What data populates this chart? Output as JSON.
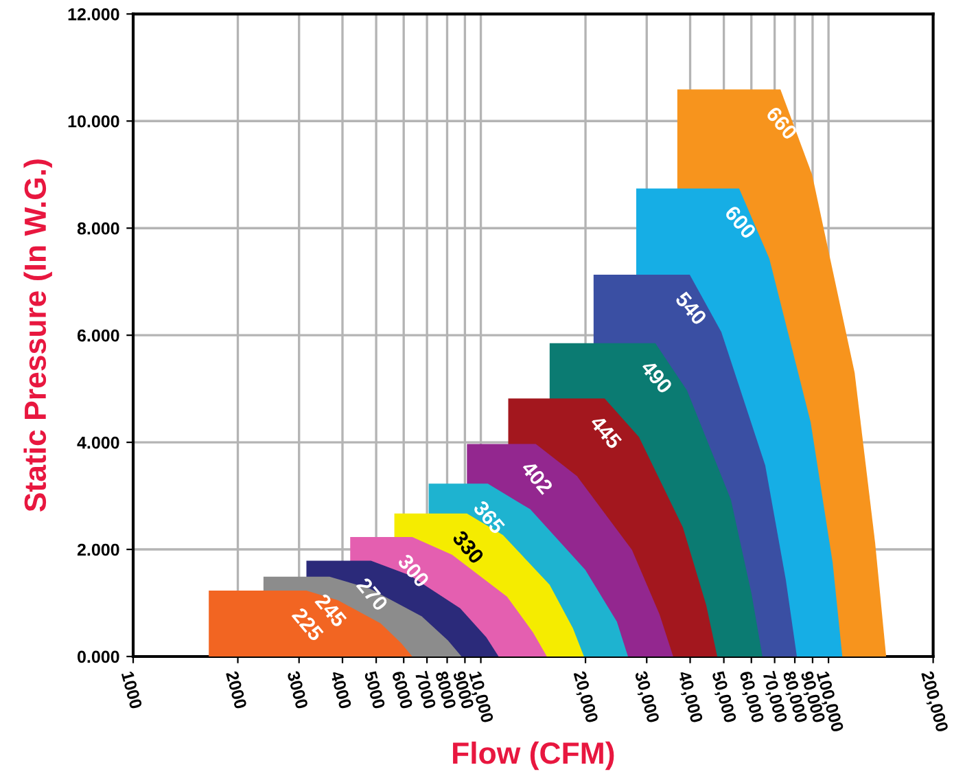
{
  "chart_data": {
    "type": "area",
    "xlabel": "Flow (CFM)",
    "ylabel": "Static Pressure (In W.G.)",
    "log": "x",
    "grid": true,
    "xlim": [
      1000,
      200000
    ],
    "ylim": [
      0,
      12
    ],
    "xticks": [
      1000,
      2000,
      3000,
      4000,
      5000,
      6000,
      7000,
      8000,
      9000,
      {
        "value": 10000,
        "label": "10,000"
      },
      {
        "value": 20000,
        "label": "20,000"
      },
      {
        "value": 30000,
        "label": "30,000"
      },
      {
        "value": 40000,
        "label": "40,000"
      },
      {
        "value": 50000,
        "label": "50,000"
      },
      {
        "value": 60000,
        "label": "60,000"
      },
      {
        "value": 70000,
        "label": "70,000"
      },
      {
        "value": 80000,
        "label": "80,000"
      },
      {
        "value": 90000,
        "label": "90,000"
      },
      {
        "value": 100000,
        "label": "100,000"
      },
      {
        "value": 200000,
        "label": "200,000"
      }
    ],
    "yticks": [
      {
        "value": 0,
        "label": "0.000"
      },
      {
        "value": 2,
        "label": "2.000"
      },
      {
        "value": 4,
        "label": "4.000"
      },
      {
        "value": 6,
        "label": "6.000"
      },
      {
        "value": 8,
        "label": "8.000"
      },
      {
        "value": 10,
        "label": "10.000"
      },
      {
        "value": 12,
        "label": "12.000"
      }
    ],
    "series": [
      {
        "name": "225",
        "color": "#f26522",
        "x": [
          1650,
          2230,
          2800,
          3150,
          3880,
          5150,
          5900,
          6350
        ],
        "values": [
          1.23,
          1.23,
          1.23,
          1.23,
          1.05,
          0.62,
          0.25,
          0
        ]
      },
      {
        "name": "245",
        "color": "#8c8c8c",
        "x": [
          2370,
          2720,
          3510,
          3670,
          4790,
          6760,
          8040,
          8800
        ],
        "values": [
          1.49,
          1.49,
          1.49,
          1.49,
          1.27,
          0.75,
          0.3,
          0
        ]
      },
      {
        "name": "270",
        "color": "#2b2a7a",
        "x": [
          3150,
          3670,
          4610,
          4830,
          6230,
          8720,
          10370,
          11250
        ],
        "values": [
          1.79,
          1.79,
          1.79,
          1.79,
          1.52,
          0.9,
          0.36,
          0
        ]
      },
      {
        "name": "300",
        "color": "#e45fb0",
        "x": [
          4210,
          4920,
          6060,
          6350,
          8260,
          11890,
          14130,
          15490
        ],
        "values": [
          2.23,
          2.23,
          2.23,
          2.23,
          1.9,
          1.12,
          0.45,
          0
        ]
      },
      {
        "name": "330",
        "color": "#f5ec00",
        "x": [
          5640,
          6640,
          8720,
          9120,
          11570,
          15770,
          18400,
          19800
        ],
        "values": [
          2.67,
          2.67,
          2.67,
          2.67,
          2.27,
          1.34,
          0.53,
          0
        ]
      },
      {
        "name": "365",
        "color": "#1eb3d0",
        "x": [
          7080,
          8340,
          10000,
          10470,
          13870,
          19970,
          24620,
          26500
        ],
        "values": [
          3.23,
          3.23,
          3.23,
          3.23,
          2.75,
          1.62,
          0.65,
          0
        ]
      },
      {
        "name": "402",
        "color": "#93278f",
        "x": [
          9120,
          10760,
          13750,
          14390,
          18900,
          27210,
          32650,
          35750
        ],
        "values": [
          3.97,
          3.97,
          3.97,
          3.97,
          3.37,
          1.99,
          0.79,
          0
        ]
      },
      {
        "name": "445",
        "color": "#a3171e",
        "x": [
          11990,
          14130,
          20710,
          22700,
          28490,
          38120,
          44490,
          47860
        ],
        "values": [
          4.82,
          4.82,
          4.82,
          4.82,
          4.1,
          2.41,
          0.96,
          0
        ]
      },
      {
        "name": "490",
        "color": "#0b7b72",
        "x": [
          15770,
          18900,
          29790,
          31770,
          39170,
          52380,
          60070,
          64570
        ],
        "values": [
          5.85,
          5.85,
          5.85,
          5.85,
          4.97,
          2.93,
          1.17,
          0
        ]
      },
      {
        "name": "540",
        "color": "#3a4fa3",
        "x": [
          21100,
          24160,
          37410,
          39890,
          49170,
          65770,
          75380,
          81100
        ],
        "values": [
          7.13,
          7.13,
          7.13,
          7.13,
          6.06,
          3.57,
          1.43,
          0
        ]
      },
      {
        "name": "600",
        "color": "#16aee5",
        "x": [
          27990,
          32060,
          51410,
          55330,
          67590,
          88880,
          102800,
          109600
        ],
        "values": [
          8.74,
          8.74,
          8.74,
          8.74,
          7.43,
          4.37,
          1.75,
          0
        ]
      },
      {
        "name": "660",
        "color": "#f7941d",
        "x": [
          36740,
          42890,
          67590,
          72740,
          89710,
          118900,
          136200,
          146500
        ],
        "values": [
          10.59,
          10.59,
          10.59,
          10.59,
          9.0,
          5.3,
          2.12,
          0
        ]
      }
    ]
  }
}
